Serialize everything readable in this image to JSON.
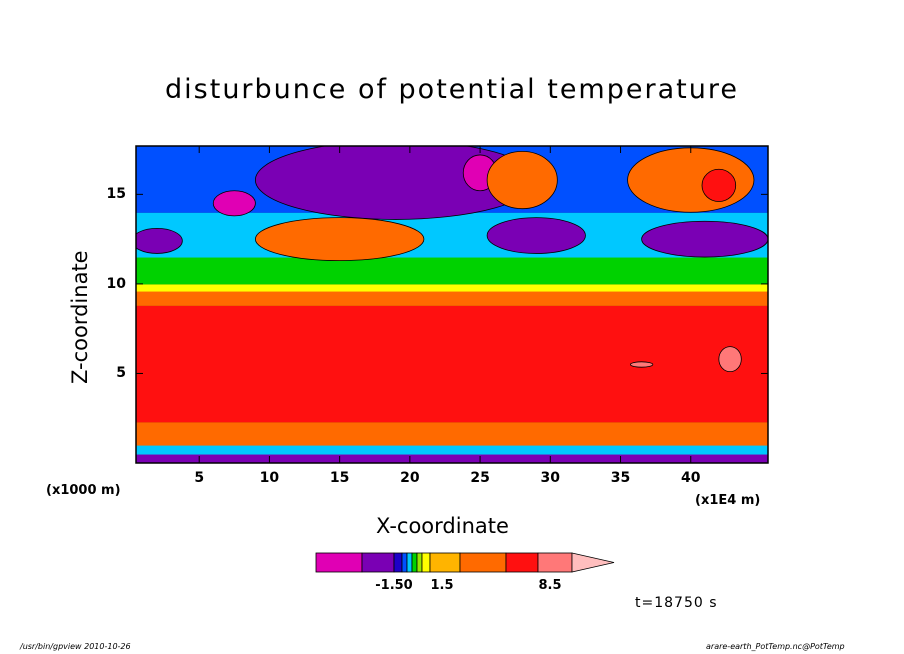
{
  "chart_data": {
    "type": "heatmap",
    "title": "disturbunce of potential temperature",
    "xlabel": "X-coordinate",
    "ylabel": "Z-coordinate",
    "x_unit_label": "(x1E4 m)",
    "y_unit_label": "(x1000 m)",
    "x_ticks": [
      5,
      10,
      15,
      20,
      25,
      30,
      35,
      40
    ],
    "y_ticks": [
      5,
      10,
      15
    ],
    "xlim": [
      0.5,
      45.5
    ],
    "ylim": [
      0,
      17.7
    ],
    "bands": [
      {
        "z": [
          0,
          0.5
        ],
        "level": 1
      },
      {
        "z": [
          0.5,
          1.0
        ],
        "level": 4
      },
      {
        "z": [
          1.0,
          2.3
        ],
        "level": 9
      },
      {
        "z": [
          2.3,
          7.0
        ],
        "level": 10
      },
      {
        "z": [
          7.0,
          8.8
        ],
        "level": 10
      },
      {
        "z": [
          8.8,
          9.6
        ],
        "level": 9
      },
      {
        "z": [
          9.6,
          10.0
        ],
        "level": 7
      },
      {
        "z": [
          10.0,
          11.5
        ],
        "level": 5
      },
      {
        "z": [
          11.5,
          14.0
        ],
        "level": 4
      },
      {
        "z": [
          14.0,
          17.7
        ],
        "level": 3
      }
    ],
    "features": [
      {
        "x": 19,
        "z": 15.8,
        "rx": 10,
        "rz": 2.2,
        "level": 1
      },
      {
        "x": 7.5,
        "z": 14.5,
        "rx": 1.5,
        "rz": 0.7,
        "level": 0
      },
      {
        "x": 25,
        "z": 16.2,
        "rx": 1.2,
        "rz": 1.0,
        "level": 0
      },
      {
        "x": 28,
        "z": 15.8,
        "rx": 2.5,
        "rz": 1.6,
        "level": 9
      },
      {
        "x": 40,
        "z": 15.8,
        "rx": 4.5,
        "rz": 1.8,
        "level": 9
      },
      {
        "x": 42,
        "z": 15.5,
        "rx": 1.2,
        "rz": 0.9,
        "level": 10
      },
      {
        "x": 29,
        "z": 12.7,
        "rx": 3.5,
        "rz": 1.0,
        "level": 1
      },
      {
        "x": 41,
        "z": 12.5,
        "rx": 4.5,
        "rz": 1.0,
        "level": 1
      },
      {
        "x": 2,
        "z": 12.4,
        "rx": 1.8,
        "rz": 0.7,
        "level": 1
      },
      {
        "x": 15,
        "z": 12.5,
        "rx": 6,
        "rz": 1.2,
        "level": 9
      },
      {
        "x": 42.8,
        "z": 5.8,
        "rx": 0.8,
        "rz": 0.7,
        "level": 11
      },
      {
        "x": 36.5,
        "z": 5.5,
        "rx": 0.8,
        "rz": 0.15,
        "level": 11
      }
    ],
    "colorbar": {
      "colors": [
        "#e000b4",
        "#7a00b4",
        "#1e00c8",
        "#0050ff",
        "#00c8ff",
        "#00d200",
        "#96e600",
        "#ffff00",
        "#ffb400",
        "#ff6a00",
        "#ff1010",
        "#ff7878",
        "#ffbebe"
      ],
      "tick_labels": [
        "-1.50",
        "1.5",
        "8.5"
      ]
    },
    "time_label": "t=18750 s"
  },
  "footer": {
    "left": "/usr/bin/gpview   2010-10-26",
    "right": "arare-earth_PotTemp.nc@PotTemp"
  }
}
